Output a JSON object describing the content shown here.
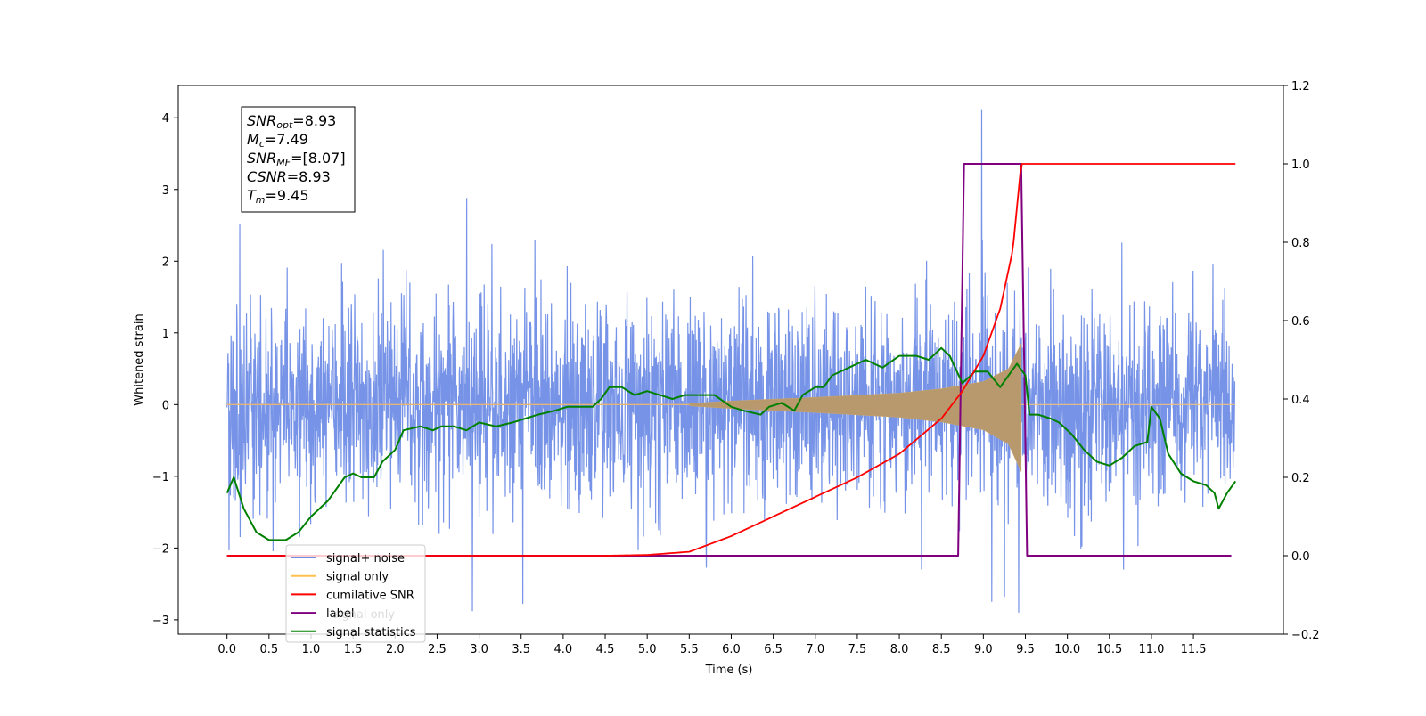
{
  "chart_data": {
    "type": "line",
    "xlabel": "Time (s)",
    "ylabel": "Whitened strain",
    "xlim": [
      -0.58,
      12.57
    ],
    "ylim": [
      -3.2,
      4.45
    ],
    "y2lim": [
      -0.2,
      1.2
    ],
    "x_ticks": [
      "0.0",
      "0.5",
      "1.0",
      "1.5",
      "2.0",
      "2.5",
      "3.0",
      "3.5",
      "4.0",
      "4.5",
      "5.0",
      "5.5",
      "6.0",
      "6.5",
      "7.0",
      "7.5",
      "8.0",
      "8.5",
      "9.0",
      "9.5",
      "10.0",
      "10.5",
      "11.0",
      "11.5"
    ],
    "y_ticks": [
      "−3",
      "−2",
      "−1",
      "0",
      "1",
      "2",
      "3",
      "4"
    ],
    "y2_ticks": [
      "−0.2",
      "0.0",
      "0.2",
      "0.4",
      "0.6",
      "0.8",
      "1.0",
      "1.2"
    ],
    "legend_position": "lower-left",
    "annotation": [
      {
        "sym": "SNR",
        "sub": "opt",
        "rest": "=8.93"
      },
      {
        "sym": "M",
        "sub": "c",
        "rest": "=7.49"
      },
      {
        "sym": "SNR",
        "sub": "MF",
        "rest": "=[8.07]"
      },
      {
        "sym": "CSNR",
        "sub": "",
        "rest": "=8.93"
      },
      {
        "sym": "T",
        "sub": "m",
        "rest": "=9.45"
      }
    ],
    "series": [
      {
        "name": "signal+ noise",
        "color": "#6f8de6",
        "axis": "left",
        "x_range": [
          0.0,
          11.99
        ],
        "envelope_typical": [
          -1.6,
          1.6
        ],
        "notable_peaks": [
          [
            0.15,
            2.52
          ],
          [
            2.85,
            2.88
          ],
          [
            8.98,
            4.12
          ],
          [
            2.92,
            -2.88
          ],
          [
            9.42,
            -2.9
          ],
          [
            3.52,
            -2.78
          ],
          [
            9.1,
            -2.75
          ],
          [
            9.25,
            -2.68
          ]
        ]
      },
      {
        "name": "signal only",
        "color": "#f5b041",
        "axis": "left",
        "chirp_merger_time": 9.45,
        "amplitude_points": [
          [
            5.5,
            0.015
          ],
          [
            6.0,
            0.05
          ],
          [
            7.0,
            0.1
          ],
          [
            8.0,
            0.16
          ],
          [
            8.5,
            0.22
          ],
          [
            9.0,
            0.32
          ],
          [
            9.3,
            0.5
          ],
          [
            9.45,
            0.85
          ]
        ]
      },
      {
        "name": "cumilative SNR",
        "color": "#ff0000",
        "axis": "right",
        "points": [
          [
            0.0,
            0.0
          ],
          [
            4.5,
            0.0
          ],
          [
            5.0,
            0.002
          ],
          [
            5.5,
            0.01
          ],
          [
            6.0,
            0.05
          ],
          [
            6.5,
            0.1
          ],
          [
            7.0,
            0.15
          ],
          [
            7.5,
            0.2
          ],
          [
            8.0,
            0.26
          ],
          [
            8.5,
            0.35
          ],
          [
            8.75,
            0.42
          ],
          [
            9.0,
            0.51
          ],
          [
            9.2,
            0.63
          ],
          [
            9.35,
            0.78
          ],
          [
            9.45,
            1.0
          ],
          [
            12.0,
            1.0
          ]
        ]
      },
      {
        "name": "label",
        "color": "#800080",
        "axis": "right",
        "points": [
          [
            0.0,
            0.0
          ],
          [
            8.7,
            0.0
          ],
          [
            8.77,
            1.0
          ],
          [
            9.45,
            1.0
          ],
          [
            9.52,
            0.0
          ],
          [
            11.95,
            0.0
          ]
        ]
      },
      {
        "name": "signal statistics",
        "color": "#008000",
        "axis": "right",
        "points": [
          [
            0.0,
            0.16
          ],
          [
            0.08,
            0.2
          ],
          [
            0.2,
            0.12
          ],
          [
            0.35,
            0.06
          ],
          [
            0.5,
            0.04
          ],
          [
            0.7,
            0.04
          ],
          [
            0.85,
            0.06
          ],
          [
            1.0,
            0.1
          ],
          [
            1.2,
            0.14
          ],
          [
            1.4,
            0.2
          ],
          [
            1.5,
            0.21
          ],
          [
            1.6,
            0.2
          ],
          [
            1.75,
            0.2
          ],
          [
            1.85,
            0.24
          ],
          [
            2.0,
            0.27
          ],
          [
            2.1,
            0.32
          ],
          [
            2.3,
            0.33
          ],
          [
            2.45,
            0.32
          ],
          [
            2.55,
            0.33
          ],
          [
            2.7,
            0.33
          ],
          [
            2.85,
            0.32
          ],
          [
            3.0,
            0.34
          ],
          [
            3.2,
            0.33
          ],
          [
            3.4,
            0.34
          ],
          [
            3.55,
            0.35
          ],
          [
            3.7,
            0.36
          ],
          [
            3.9,
            0.37
          ],
          [
            4.05,
            0.38
          ],
          [
            4.2,
            0.38
          ],
          [
            4.35,
            0.38
          ],
          [
            4.45,
            0.4
          ],
          [
            4.55,
            0.43
          ],
          [
            4.7,
            0.43
          ],
          [
            4.85,
            0.41
          ],
          [
            5.0,
            0.42
          ],
          [
            5.15,
            0.41
          ],
          [
            5.3,
            0.4
          ],
          [
            5.45,
            0.41
          ],
          [
            5.6,
            0.41
          ],
          [
            5.8,
            0.41
          ],
          [
            6.0,
            0.38
          ],
          [
            6.15,
            0.37
          ],
          [
            6.35,
            0.36
          ],
          [
            6.45,
            0.38
          ],
          [
            6.6,
            0.39
          ],
          [
            6.75,
            0.37
          ],
          [
            6.85,
            0.41
          ],
          [
            7.0,
            0.43
          ],
          [
            7.1,
            0.43
          ],
          [
            7.2,
            0.46
          ],
          [
            7.4,
            0.48
          ],
          [
            7.6,
            0.5
          ],
          [
            7.8,
            0.48
          ],
          [
            8.0,
            0.51
          ],
          [
            8.2,
            0.51
          ],
          [
            8.35,
            0.5
          ],
          [
            8.5,
            0.53
          ],
          [
            8.6,
            0.51
          ],
          [
            8.75,
            0.44
          ],
          [
            8.9,
            0.47
          ],
          [
            9.05,
            0.47
          ],
          [
            9.2,
            0.43
          ],
          [
            9.3,
            0.46
          ],
          [
            9.4,
            0.49
          ],
          [
            9.5,
            0.46
          ],
          [
            9.55,
            0.36
          ],
          [
            9.65,
            0.36
          ],
          [
            9.8,
            0.35
          ],
          [
            9.9,
            0.34
          ],
          [
            10.05,
            0.31
          ],
          [
            10.2,
            0.27
          ],
          [
            10.35,
            0.24
          ],
          [
            10.5,
            0.23
          ],
          [
            10.65,
            0.25
          ],
          [
            10.8,
            0.28
          ],
          [
            10.95,
            0.29
          ],
          [
            11.0,
            0.38
          ],
          [
            11.1,
            0.35
          ],
          [
            11.2,
            0.26
          ],
          [
            11.35,
            0.21
          ],
          [
            11.5,
            0.19
          ],
          [
            11.65,
            0.18
          ],
          [
            11.75,
            0.16
          ],
          [
            11.8,
            0.12
          ],
          [
            11.9,
            0.16
          ],
          [
            12.0,
            0.19
          ]
        ]
      }
    ],
    "legend_overlay_ghost": "signal only"
  }
}
